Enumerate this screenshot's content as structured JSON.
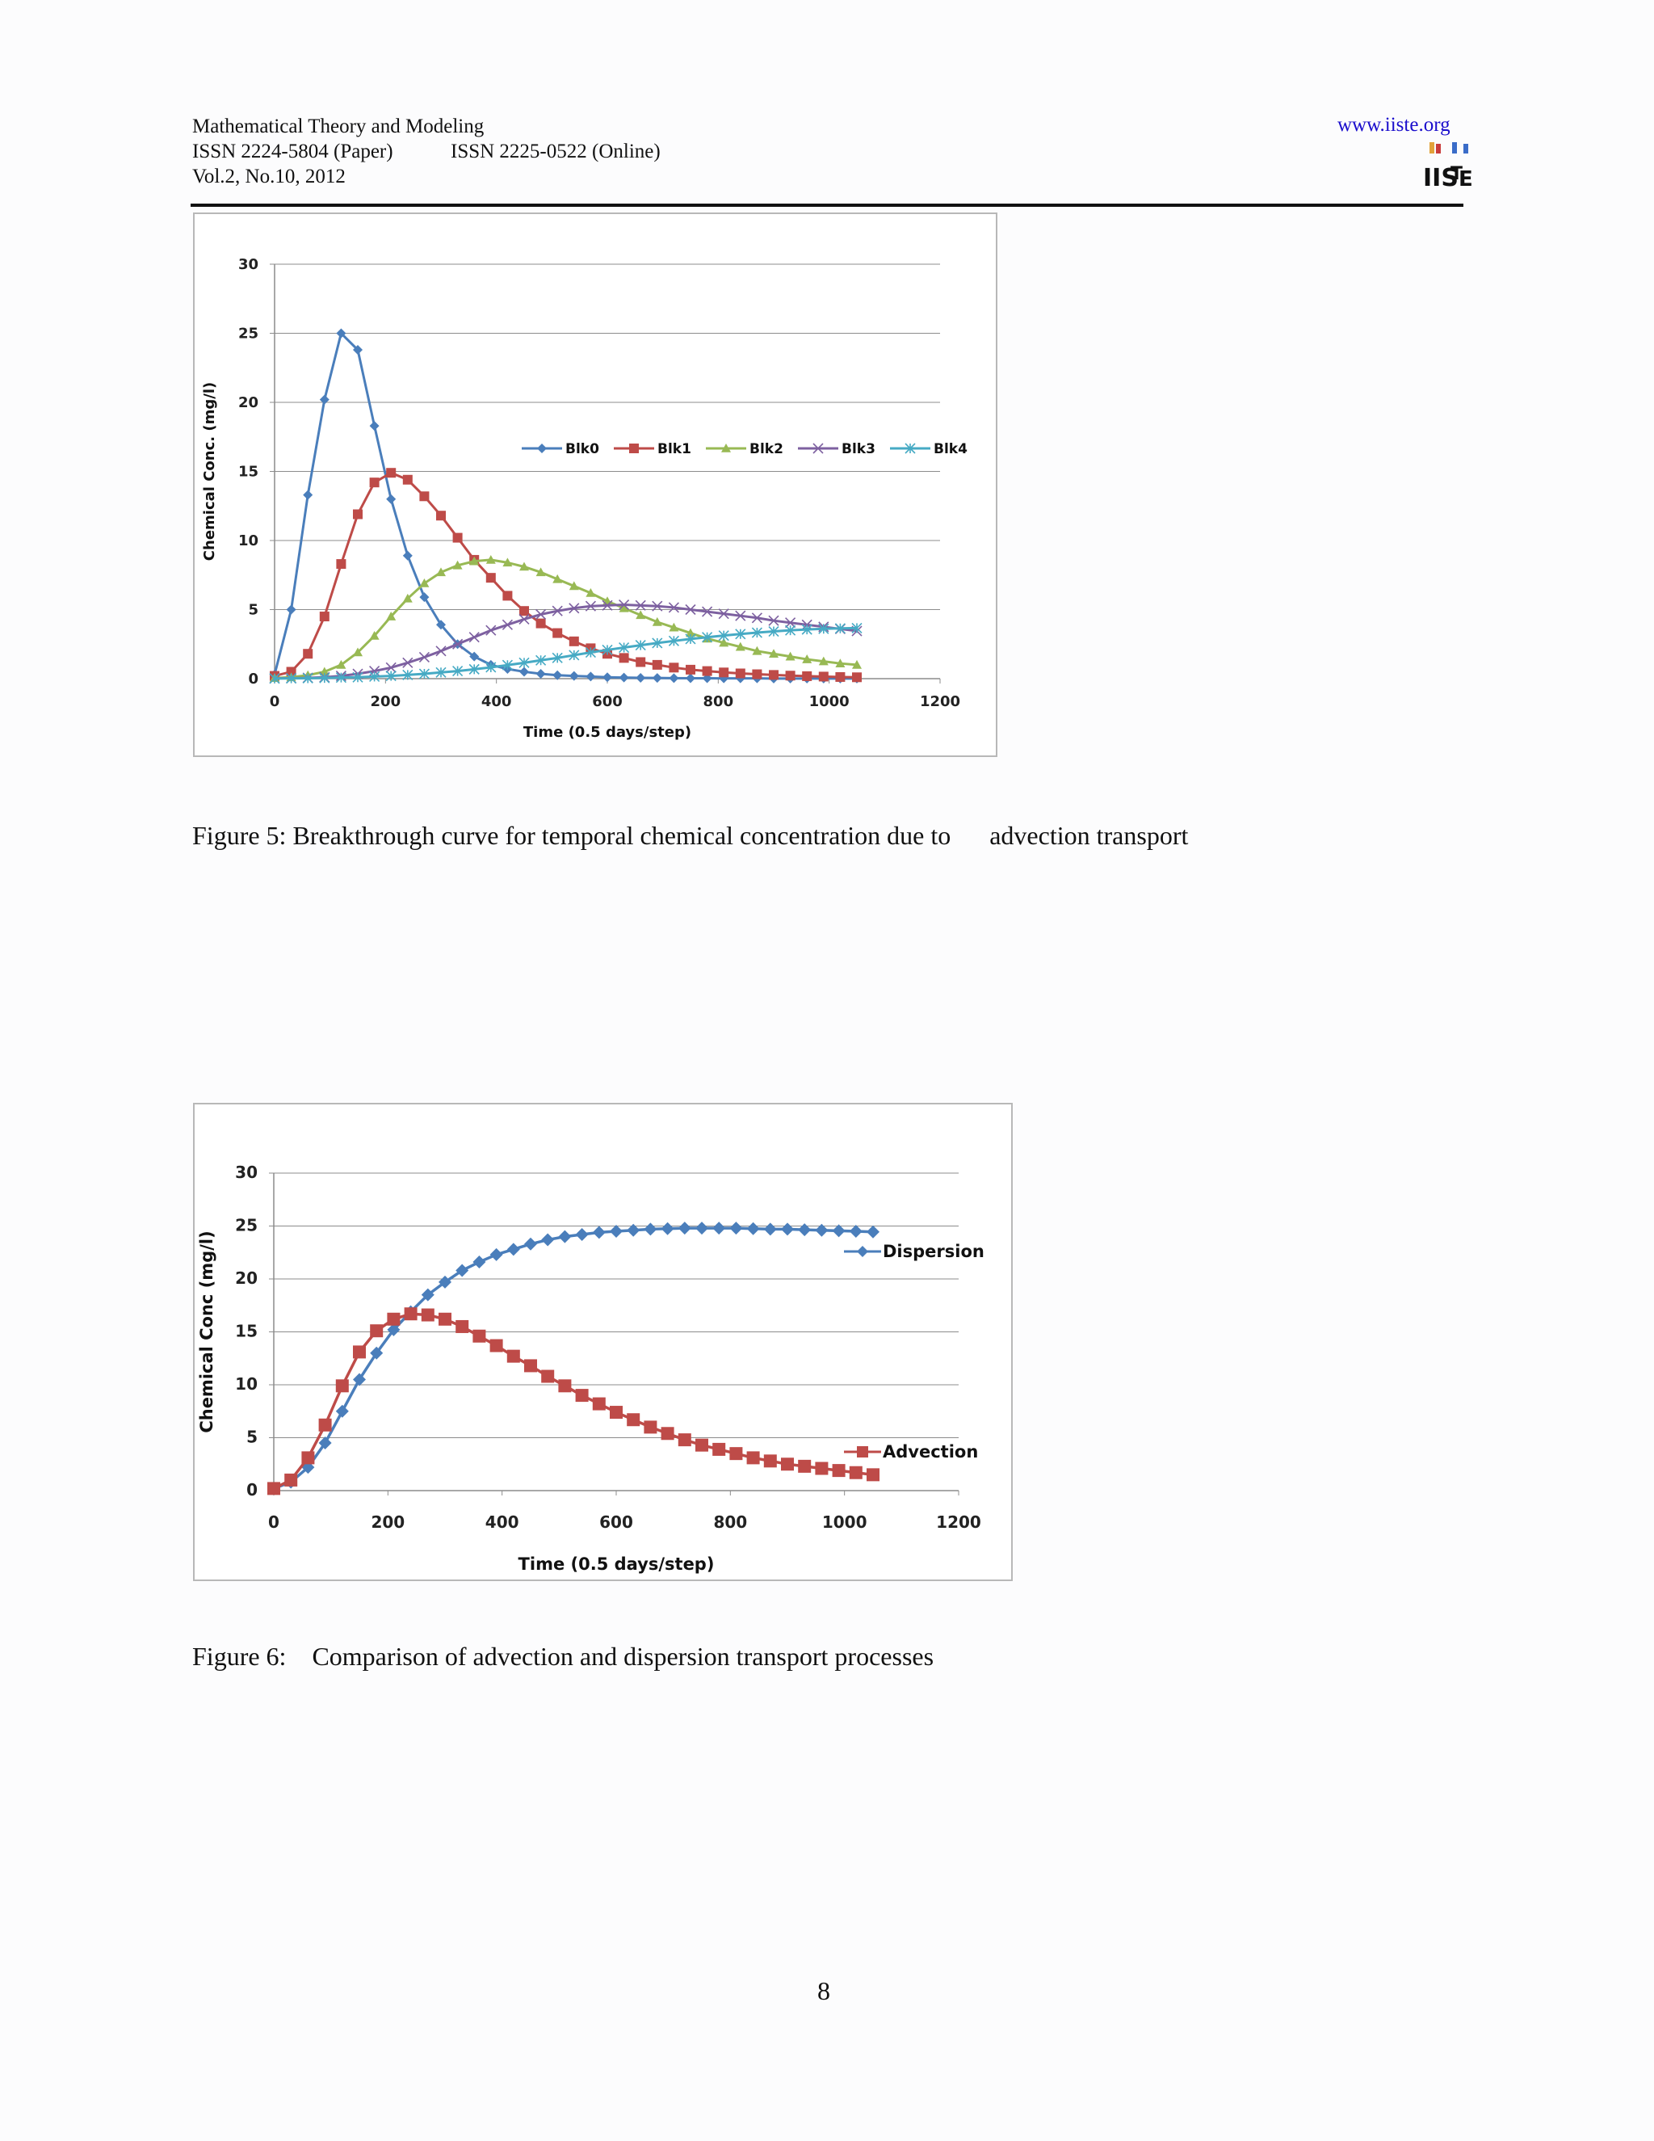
{
  "header": {
    "journal": "Mathematical Theory and Modeling",
    "issn_paper": "ISSN 2224-5804 (Paper)",
    "issn_online": "ISSN 2225-0522 (Online)",
    "volume": "Vol.2, No.10, 2012",
    "website": "www.iiste.org",
    "logo_text": "IISTE"
  },
  "figure5": {
    "caption": "Figure 5: Breakthrough curve for temporal chemical concentration due to      advection transport"
  },
  "figure6": {
    "caption": "Figure 6:    Comparison of advection and dispersion transport processes"
  },
  "page_number": "8",
  "chart_data": [
    {
      "type": "line",
      "title": "",
      "xlabel": "Time (0.5 days/step)",
      "ylabel": "Chemical Conc. (mg/l)",
      "xlim": [
        0,
        1200
      ],
      "ylim": [
        0,
        30
      ],
      "xticks": [
        0,
        200,
        400,
        600,
        800,
        1000,
        1200
      ],
      "yticks": [
        0,
        5,
        10,
        15,
        20,
        25,
        30
      ],
      "grid": "horizontal",
      "legend": "right-middle, single row",
      "x": [
        0,
        30,
        60,
        90,
        120,
        150,
        180,
        210,
        240,
        270,
        300,
        330,
        360,
        390,
        420,
        450,
        480,
        510,
        540,
        570,
        600,
        630,
        660,
        690,
        720,
        750,
        780,
        810,
        840,
        870,
        900,
        930,
        960,
        990,
        1020,
        1050
      ],
      "series": [
        {
          "name": "Blk0",
          "color": "#4a7ebb",
          "marker": "diamond",
          "values": [
            0.3,
            5.0,
            13.3,
            20.2,
            25.0,
            23.8,
            18.3,
            13.0,
            8.9,
            5.9,
            3.9,
            2.5,
            1.6,
            1.0,
            0.7,
            0.5,
            0.35,
            0.25,
            0.2,
            0.15,
            0.1,
            0.08,
            0.06,
            0.05,
            0.04,
            0.03,
            0.03,
            0.02,
            0.02,
            0.02,
            0.01,
            0.01,
            0.01,
            0.01,
            0.01,
            0.01
          ]
        },
        {
          "name": "Blk1",
          "color": "#be4b48",
          "marker": "square",
          "values": [
            0.2,
            0.5,
            1.8,
            4.5,
            8.3,
            11.9,
            14.2,
            14.9,
            14.4,
            13.2,
            11.8,
            10.2,
            8.6,
            7.3,
            6.0,
            4.9,
            4.0,
            3.3,
            2.7,
            2.2,
            1.8,
            1.5,
            1.2,
            1.0,
            0.8,
            0.65,
            0.55,
            0.45,
            0.38,
            0.32,
            0.27,
            0.22,
            0.18,
            0.15,
            0.12,
            0.1
          ]
        },
        {
          "name": "Blk2",
          "color": "#98b954",
          "marker": "triangle",
          "values": [
            0.05,
            0.1,
            0.25,
            0.5,
            1.0,
            1.9,
            3.1,
            4.5,
            5.8,
            6.9,
            7.7,
            8.2,
            8.5,
            8.6,
            8.4,
            8.1,
            7.7,
            7.2,
            6.7,
            6.2,
            5.6,
            5.1,
            4.6,
            4.1,
            3.7,
            3.3,
            2.9,
            2.6,
            2.3,
            2.0,
            1.8,
            1.6,
            1.4,
            1.25,
            1.1,
            1.0
          ]
        },
        {
          "name": "Blk3",
          "color": "#7d60a0",
          "marker": "x",
          "values": [
            0.02,
            0.03,
            0.06,
            0.1,
            0.2,
            0.35,
            0.55,
            0.8,
            1.15,
            1.55,
            2.0,
            2.5,
            3.0,
            3.5,
            3.9,
            4.3,
            4.65,
            4.9,
            5.1,
            5.25,
            5.3,
            5.35,
            5.3,
            5.25,
            5.15,
            5.0,
            4.85,
            4.7,
            4.55,
            4.4,
            4.2,
            4.05,
            3.9,
            3.75,
            3.6,
            3.45
          ]
        },
        {
          "name": "Blk4",
          "color": "#46aac4",
          "marker": "asterisk",
          "values": [
            0.01,
            0.02,
            0.03,
            0.05,
            0.08,
            0.1,
            0.15,
            0.2,
            0.27,
            0.35,
            0.45,
            0.55,
            0.68,
            0.82,
            0.98,
            1.15,
            1.33,
            1.5,
            1.7,
            1.9,
            2.08,
            2.25,
            2.42,
            2.58,
            2.73,
            2.87,
            3.0,
            3.12,
            3.23,
            3.33,
            3.42,
            3.5,
            3.56,
            3.61,
            3.64,
            3.66
          ]
        }
      ]
    },
    {
      "type": "line",
      "title": "",
      "xlabel": "Time (0.5 days/step)",
      "ylabel": "Chemical Conc (mg/l)",
      "xlim": [
        0,
        1200
      ],
      "ylim": [
        0,
        30
      ],
      "xticks": [
        0,
        200,
        400,
        600,
        800,
        1000,
        1200
      ],
      "yticks": [
        0,
        5,
        10,
        15,
        20,
        25,
        30
      ],
      "grid": "horizontal",
      "legend": "right, at series ends",
      "x": [
        0,
        30,
        60,
        90,
        120,
        150,
        180,
        210,
        240,
        270,
        300,
        330,
        360,
        390,
        420,
        450,
        480,
        510,
        540,
        570,
        600,
        630,
        660,
        690,
        720,
        750,
        780,
        810,
        840,
        870,
        900,
        930,
        960,
        990,
        1020,
        1050
      ],
      "series": [
        {
          "name": "Dispersion",
          "color": "#4a7ebb",
          "marker": "diamond",
          "values": [
            0.2,
            0.8,
            2.2,
            4.5,
            7.5,
            10.5,
            13.0,
            15.2,
            16.9,
            18.5,
            19.7,
            20.8,
            21.6,
            22.3,
            22.8,
            23.3,
            23.7,
            24.0,
            24.2,
            24.4,
            24.5,
            24.6,
            24.7,
            24.75,
            24.8,
            24.8,
            24.8,
            24.8,
            24.75,
            24.7,
            24.7,
            24.65,
            24.6,
            24.55,
            24.5,
            24.45
          ]
        },
        {
          "name": "Advection",
          "color": "#be4b48",
          "marker": "square",
          "values": [
            0.2,
            1.0,
            3.1,
            6.2,
            9.9,
            13.1,
            15.1,
            16.2,
            16.7,
            16.6,
            16.2,
            15.5,
            14.6,
            13.7,
            12.7,
            11.8,
            10.8,
            9.9,
            9.0,
            8.2,
            7.4,
            6.7,
            6.0,
            5.4,
            4.8,
            4.3,
            3.9,
            3.5,
            3.1,
            2.8,
            2.5,
            2.3,
            2.1,
            1.9,
            1.7,
            1.5
          ]
        }
      ]
    }
  ]
}
